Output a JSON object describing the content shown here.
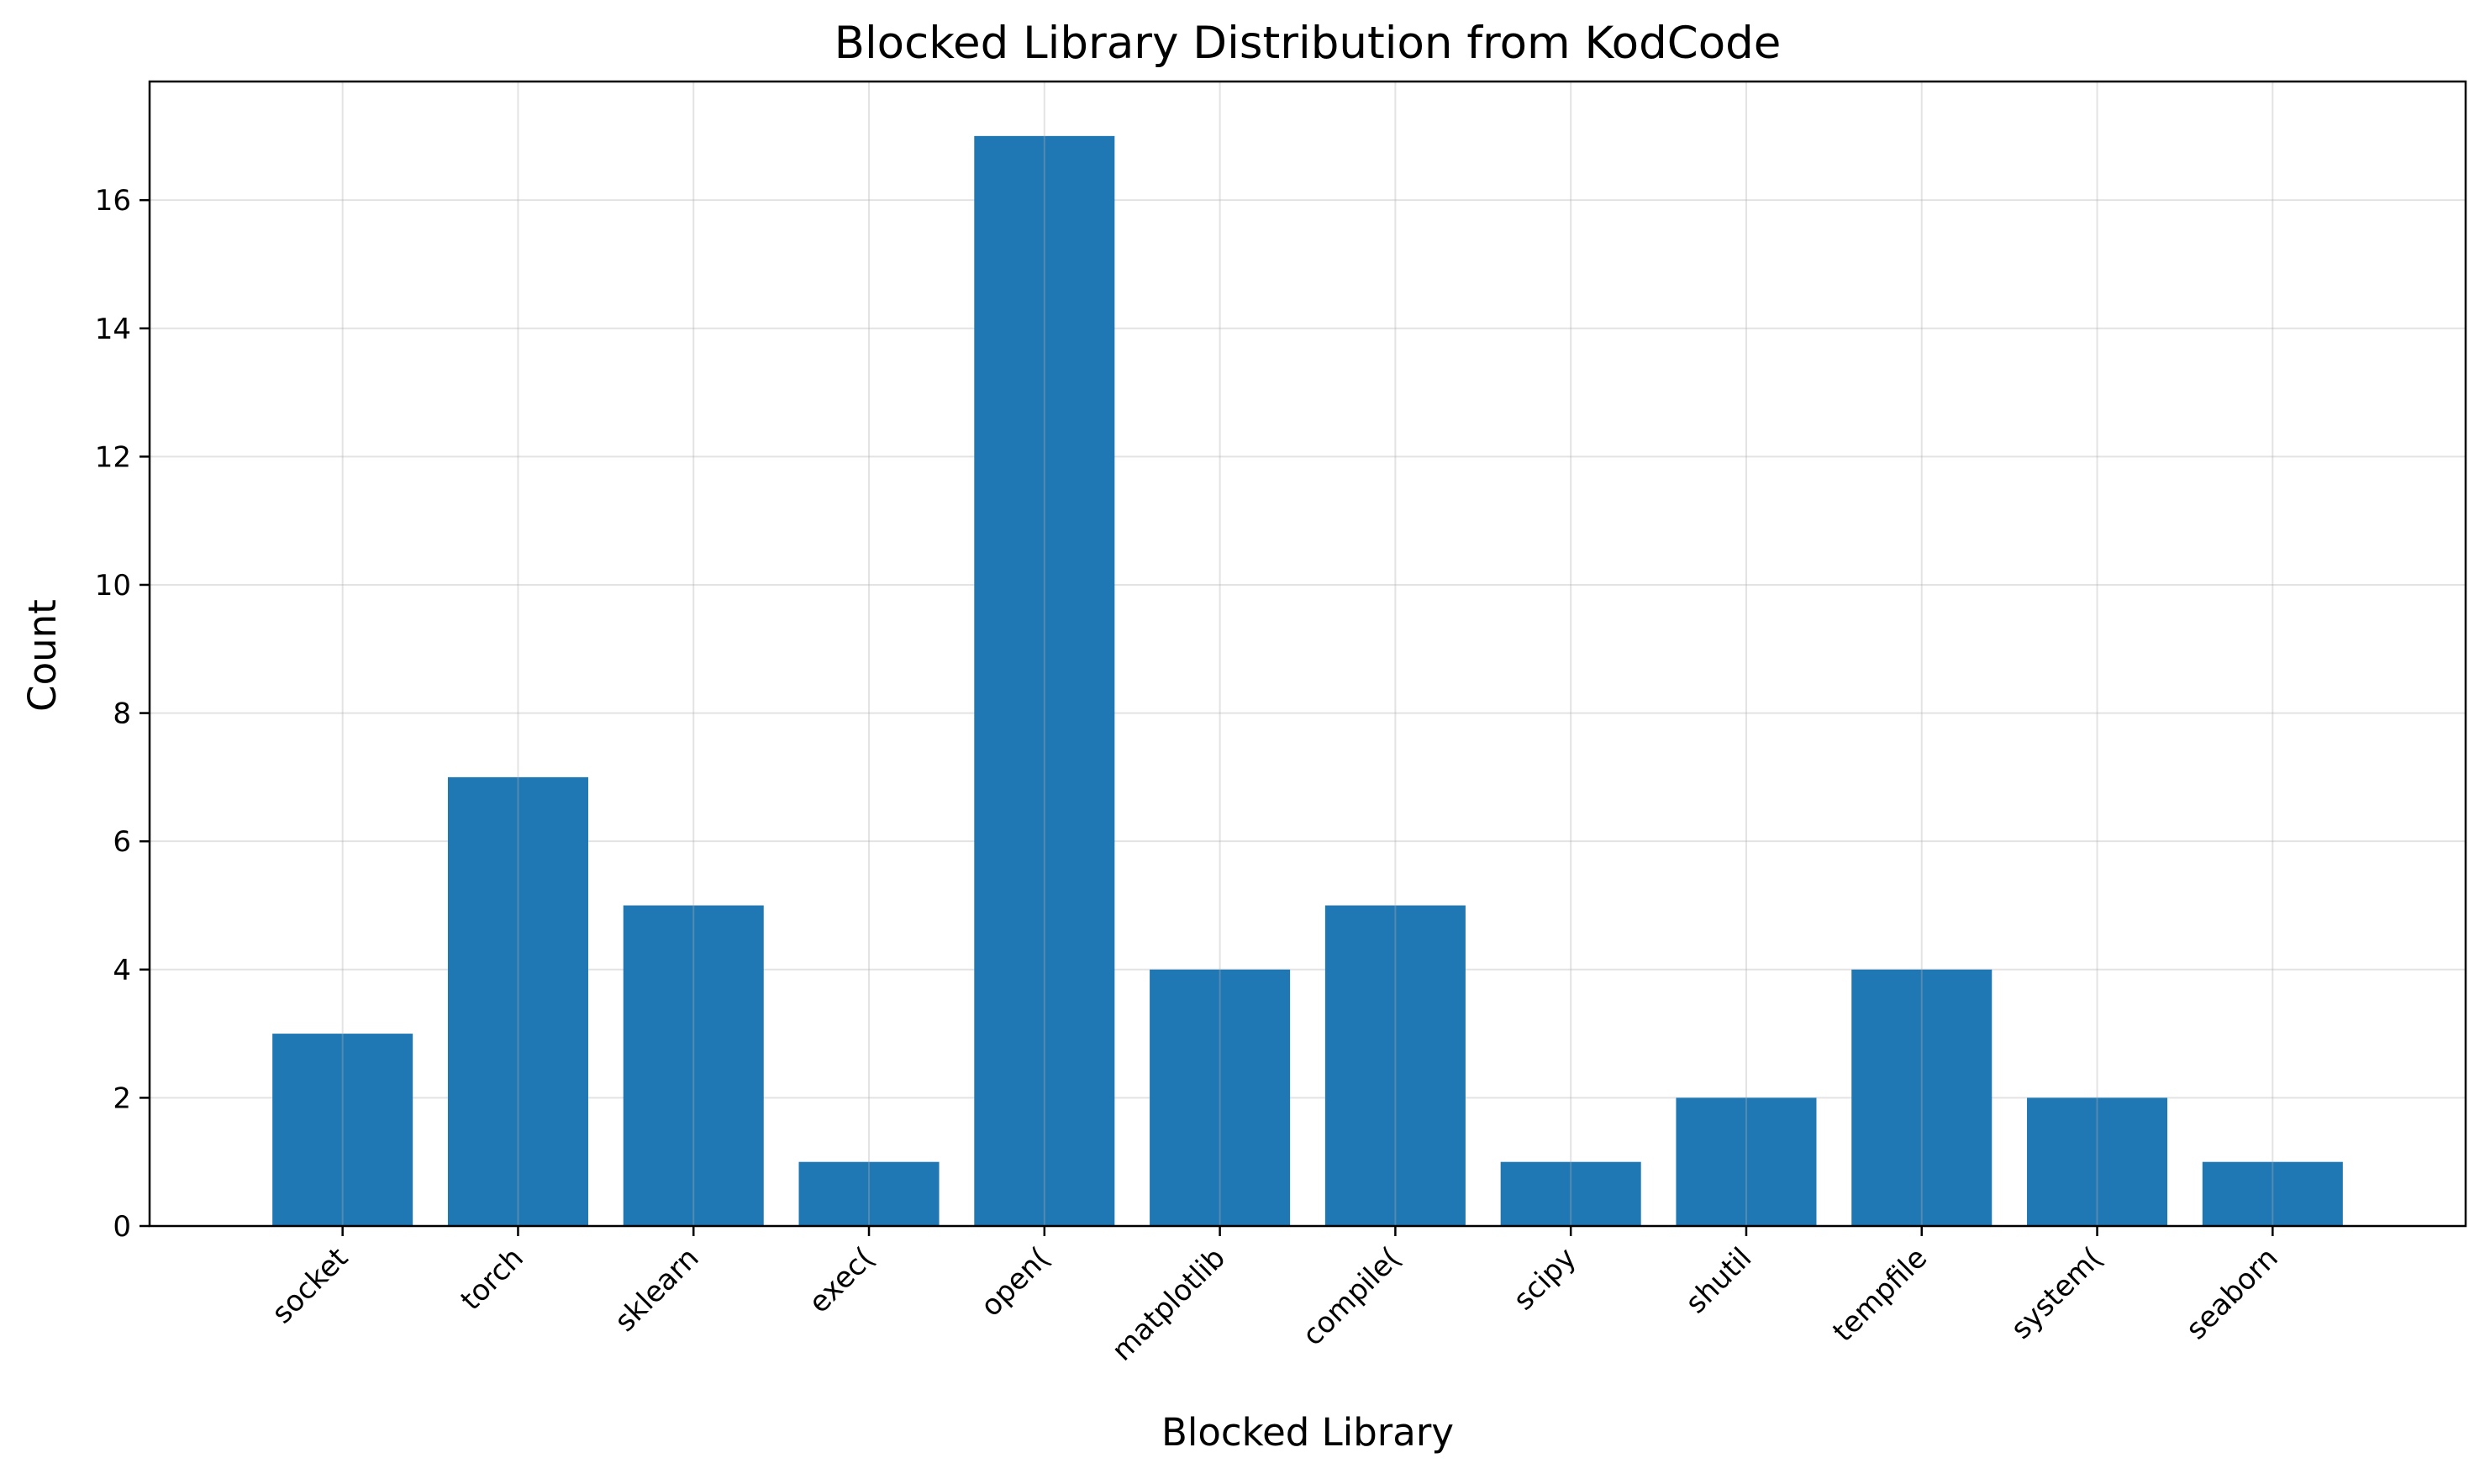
{
  "chart_data": {
    "type": "bar",
    "title": "Blocked Library Distribution from KodCode",
    "xlabel": "Blocked Library",
    "ylabel": "Count",
    "categories": [
      "socket",
      "torch",
      "sklearn",
      "exec(",
      "open(",
      "matplotlib",
      "compile(",
      "scipy",
      "shutil",
      "tempfile",
      "system(",
      "seaborn"
    ],
    "values": [
      3,
      7,
      5,
      1,
      17,
      4,
      5,
      1,
      2,
      4,
      2,
      1
    ],
    "ylim": [
      0,
      17.85
    ],
    "yticks": [
      0,
      2,
      4,
      6,
      8,
      10,
      12,
      14,
      16
    ],
    "grid": true,
    "bar_color": "#1f77b4",
    "grid_color": "#e3e3e3"
  }
}
